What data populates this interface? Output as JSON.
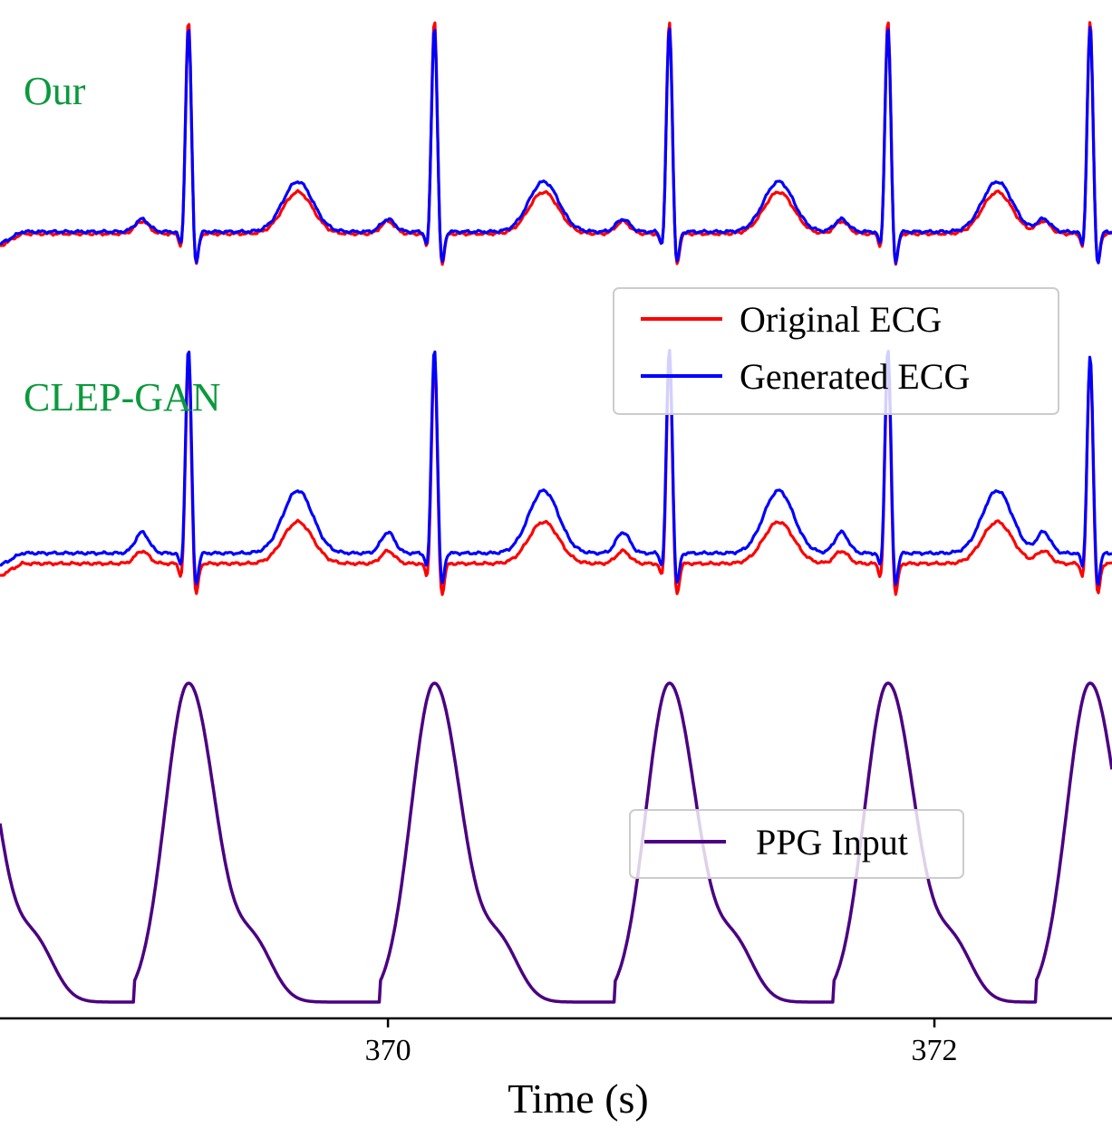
{
  "colors": {
    "original": "#ff0000",
    "generated": "#0000ff",
    "ppg": "#4b0082",
    "label": "#0a9a3c"
  },
  "chart_data": {
    "type": "line",
    "xlabel": "Time (s)",
    "xlim": [
      368.58,
      372.65
    ],
    "xticks": [
      {
        "value": 370,
        "label": "370"
      },
      {
        "value": 372,
        "label": "372"
      }
    ],
    "grid": false,
    "beats": [
      369.27,
      370.17,
      371.03,
      371.83,
      372.57
    ],
    "panels": [
      {
        "label": "Our",
        "legend": {
          "position": "right",
          "entries": [
            "Original ECG",
            "Generated ECG"
          ]
        },
        "series": [
          {
            "name": "Original ECG",
            "role": "original",
            "variant": "our"
          },
          {
            "name": "Generated ECG",
            "role": "generated",
            "variant": "our"
          }
        ]
      },
      {
        "label": "CLEP-GAN",
        "series": [
          {
            "name": "Original ECG",
            "role": "original",
            "variant": "clep"
          },
          {
            "name": "Generated ECG",
            "role": "generated",
            "variant": "clep"
          }
        ]
      },
      {
        "label": "",
        "legend": {
          "position": "right",
          "entries": [
            "PPG Input"
          ]
        },
        "series": [
          {
            "name": "PPG Input",
            "role": "ppg",
            "variant": "ppg"
          }
        ]
      }
    ]
  }
}
